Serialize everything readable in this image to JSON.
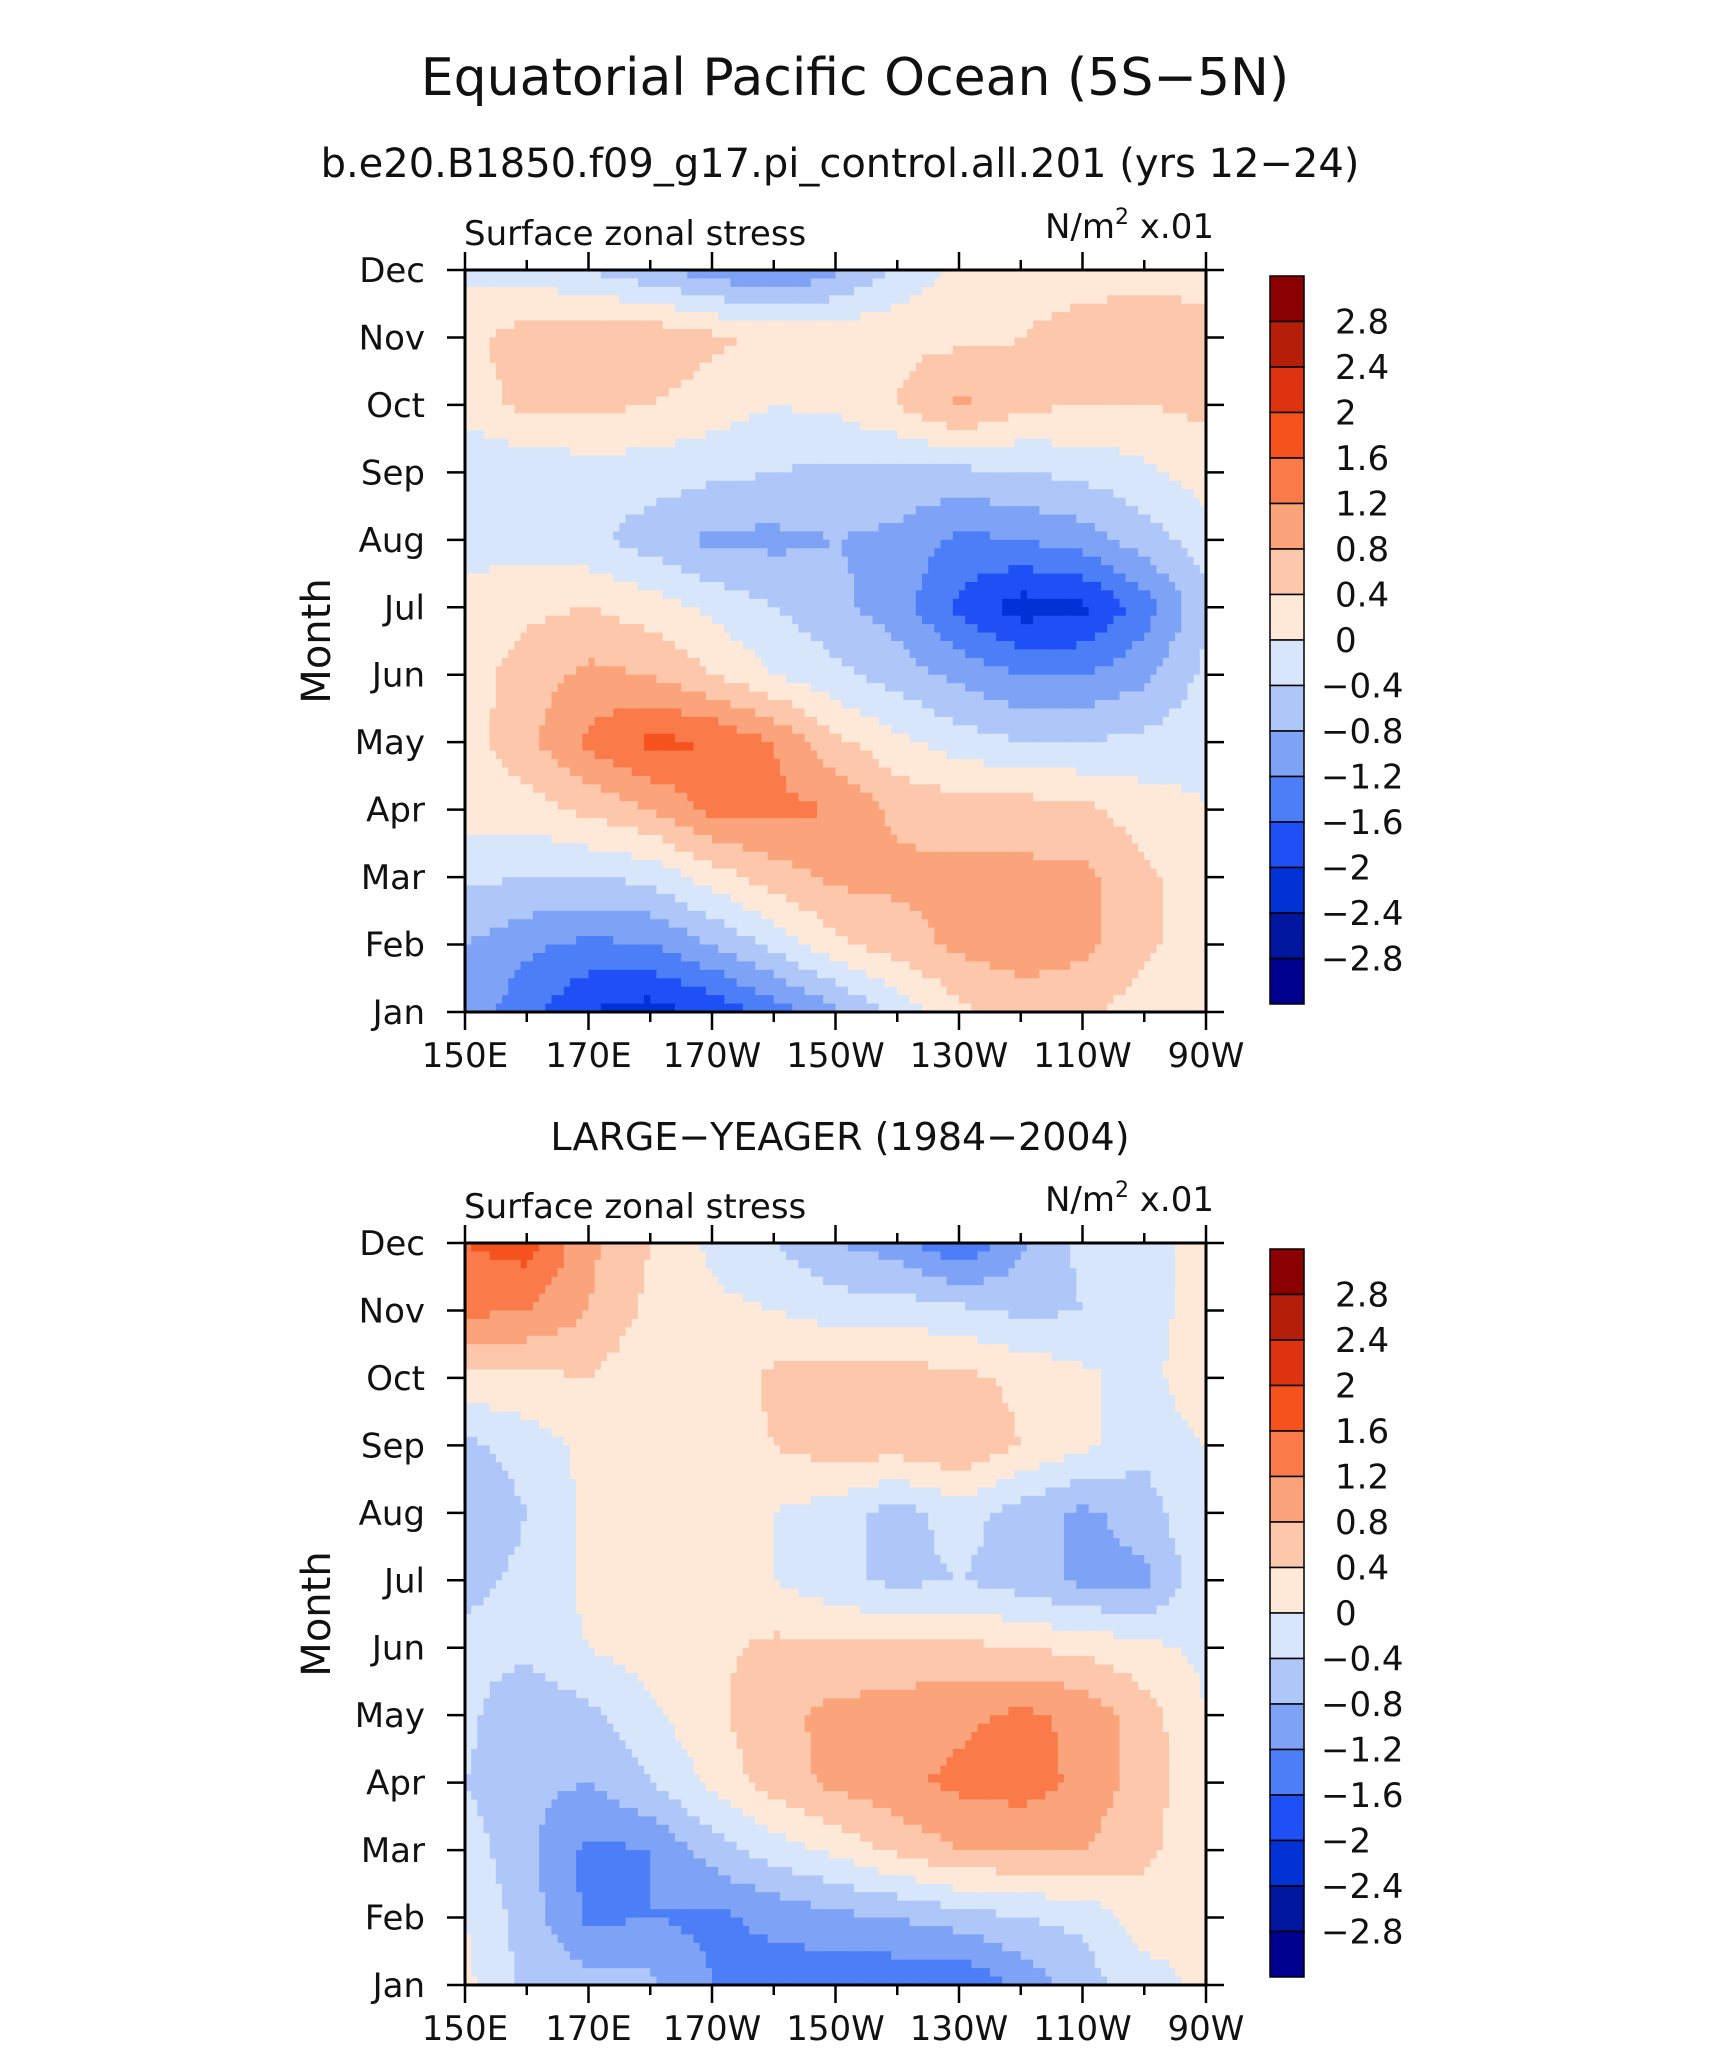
{
  "figure": {
    "title": "Equatorial Pacific Ocean (5S−5N)",
    "subtitle": "b.e20.B1850.f09_g17.pi_control.all.201 (yrs 12−24)"
  },
  "palette": {
    "levels": [
      -2.8,
      -2.4,
      -2,
      -1.6,
      -1.2,
      -0.8,
      -0.4,
      0,
      0.4,
      0.8,
      1.2,
      1.6,
      2,
      2.4,
      2.8
    ],
    "colors": [
      "#00008f",
      "#00169e",
      "#0032d6",
      "#1f50f5",
      "#4c7ef7",
      "#7ea3f6",
      "#aec6f8",
      "#d7e6fb",
      "#fee9d8",
      "#fcc7ab",
      "#fba47c",
      "#fa7a4a",
      "#f5521e",
      "#dd3311",
      "#b51e08",
      "#8b0000"
    ],
    "label_levels": [
      "−2.8",
      "−2.4",
      "−2",
      "−1.6",
      "−1.2",
      "−0.8",
      "−0.4",
      "0",
      "0.4",
      "0.8",
      "1.2",
      "1.6",
      "2",
      "2.4",
      "2.8"
    ]
  },
  "chart_data": [
    {
      "type": "heatmap",
      "panel_title": "",
      "left_label": "Surface zonal stress",
      "right_label": "N/m",
      "right_label_sup": "2",
      "right_label_suffix": " x.01",
      "ylabel": "Month",
      "x_ticklabels": [
        "150E",
        "170E",
        "170W",
        "150W",
        "130W",
        "110W",
        "90W"
      ],
      "y_ticklabels": [
        "Jan",
        "Feb",
        "Mar",
        "Apr",
        "May",
        "Jun",
        "Jul",
        "Aug",
        "Sep",
        "Oct",
        "Nov",
        "Dec"
      ],
      "x_lon": [
        150,
        160,
        170,
        180,
        190,
        200,
        210,
        220,
        230,
        240,
        250,
        260,
        270
      ],
      "y_months": [
        1,
        2,
        3,
        4,
        5,
        6,
        7,
        8,
        9,
        10,
        11,
        12
      ],
      "values": [
        [
          -0.9,
          -1.5,
          -2.0,
          -2.2,
          -1.9,
          -1.4,
          -0.9,
          -0.3,
          0.3,
          0.6,
          0.5,
          0.2,
          0.0
        ],
        [
          -0.8,
          -1.1,
          -1.3,
          -1.2,
          -0.8,
          -0.3,
          0.3,
          0.6,
          0.9,
          1.0,
          0.9,
          0.5,
          0.1
        ],
        [
          -0.3,
          -0.4,
          -0.4,
          -0.3,
          0.2,
          0.6,
          0.9,
          0.9,
          0.9,
          0.9,
          0.9,
          0.5,
          0.1
        ],
        [
          0.2,
          0.2,
          0.5,
          0.8,
          1.3,
          1.3,
          1.2,
          0.7,
          0.6,
          0.6,
          0.5,
          0.2,
          0.0
        ],
        [
          0.2,
          0.7,
          1.3,
          1.7,
          1.6,
          1.2,
          0.5,
          0.1,
          -0.2,
          -0.4,
          -0.4,
          -0.3,
          -0.1
        ],
        [
          0.2,
          0.6,
          0.9,
          0.8,
          0.4,
          0.0,
          -0.3,
          -0.6,
          -0.9,
          -1.2,
          -1.2,
          -0.9,
          -0.3
        ],
        [
          0.1,
          0.3,
          0.4,
          0.2,
          -0.1,
          -0.4,
          -0.7,
          -1.0,
          -1.7,
          -2.2,
          -2.1,
          -1.4,
          -0.5
        ],
        [
          -0.1,
          -0.2,
          -0.3,
          -0.6,
          -0.9,
          -0.9,
          -0.8,
          -0.9,
          -1.3,
          -1.2,
          -1.0,
          -0.6,
          -0.2
        ],
        [
          -0.4,
          -0.3,
          -0.2,
          -0.2,
          -0.3,
          -0.4,
          -0.5,
          -0.5,
          -0.5,
          -0.4,
          -0.3,
          -0.1,
          0.2
        ],
        [
          0.2,
          0.5,
          0.5,
          0.4,
          0.2,
          0.0,
          0.1,
          0.4,
          0.9,
          0.5,
          0.4,
          0.4,
          0.5
        ],
        [
          0.3,
          0.6,
          0.7,
          0.7,
          0.5,
          0.3,
          0.3,
          0.3,
          0.3,
          0.4,
          0.6,
          0.6,
          0.6
        ],
        [
          -0.1,
          -0.2,
          -0.4,
          -0.7,
          -1.0,
          -1.3,
          -0.9,
          -0.3,
          0.1,
          0.2,
          0.2,
          0.3,
          0.2
        ]
      ]
    },
    {
      "type": "heatmap",
      "panel_title": "LARGE−YEAGER (1984−2004)",
      "left_label": "Surface zonal stress",
      "right_label": "N/m",
      "right_label_sup": "2",
      "right_label_suffix": " x.01",
      "ylabel": "Month",
      "x_ticklabels": [
        "150E",
        "170E",
        "170W",
        "150W",
        "130W",
        "110W",
        "90W"
      ],
      "y_ticklabels": [
        "Jan",
        "Feb",
        "Mar",
        "Apr",
        "May",
        "Jun",
        "Jul",
        "Aug",
        "Sep",
        "Oct",
        "Nov",
        "Dec"
      ],
      "x_lon": [
        150,
        160,
        170,
        180,
        190,
        200,
        210,
        220,
        230,
        240,
        250,
        260,
        270
      ],
      "y_months": [
        1,
        2,
        3,
        4,
        5,
        6,
        7,
        8,
        9,
        10,
        11,
        12
      ],
      "values": [
        [
          0.1,
          -0.5,
          -0.6,
          -0.7,
          -1.2,
          -1.4,
          -1.5,
          -1.5,
          -1.6,
          -1.1,
          -0.6,
          -0.2,
          0.1
        ],
        [
          0.0,
          -0.6,
          -1.3,
          -1.2,
          -1.3,
          -1.1,
          -0.9,
          -0.8,
          -0.6,
          -0.4,
          -0.3,
          0.2,
          0.2
        ],
        [
          -0.2,
          -0.7,
          -1.3,
          -1.2,
          -0.6,
          -0.2,
          0.1,
          0.5,
          0.8,
          0.8,
          0.8,
          0.5,
          0.1
        ],
        [
          -0.4,
          -0.7,
          -0.8,
          -0.4,
          0.1,
          0.6,
          0.9,
          1.1,
          1.3,
          1.4,
          1.1,
          0.6,
          0.1
        ],
        [
          -0.3,
          -0.7,
          -0.5,
          -0.1,
          0.3,
          0.7,
          0.9,
          1.0,
          1.1,
          1.3,
          1.1,
          0.6,
          0.0
        ],
        [
          -0.3,
          -0.3,
          0.0,
          0.2,
          0.3,
          0.5,
          0.5,
          0.5,
          0.5,
          0.4,
          0.3,
          0.1,
          -0.1
        ],
        [
          -0.5,
          -0.3,
          0.1,
          0.2,
          0.1,
          0.0,
          -0.3,
          -0.5,
          -0.4,
          -0.6,
          -0.9,
          -0.9,
          -0.1
        ],
        [
          -0.8,
          -0.4,
          0.1,
          0.2,
          0.1,
          0.0,
          -0.2,
          -0.6,
          -0.2,
          -0.6,
          -0.9,
          -0.6,
          0.0
        ],
        [
          -0.5,
          -0.2,
          0.1,
          0.2,
          0.1,
          0.4,
          0.6,
          0.6,
          0.8,
          0.4,
          0.1,
          -0.3,
          0.0
        ],
        [
          0.3,
          0.3,
          0.4,
          0.1,
          0.1,
          0.5,
          0.6,
          0.6,
          0.5,
          0.3,
          0.1,
          -0.2,
          0.4
        ],
        [
          1.3,
          1.2,
          0.8,
          0.3,
          0.1,
          0.0,
          -0.2,
          -0.2,
          -0.3,
          -0.5,
          -0.4,
          -0.1,
          0.1
        ],
        [
          1.6,
          1.8,
          0.9,
          0.4,
          -0.1,
          -0.4,
          -0.8,
          -1.0,
          -1.6,
          -0.9,
          -0.3,
          -0.1,
          0.1
        ]
      ]
    }
  ]
}
